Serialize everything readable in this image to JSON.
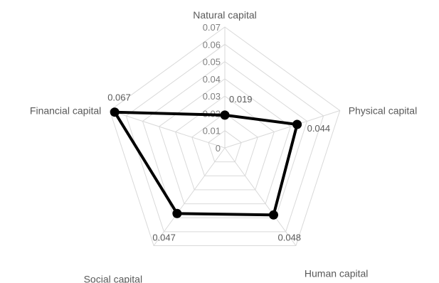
{
  "chart_data": {
    "type": "radar",
    "categories": [
      "Natural capital",
      "Physical capital",
      "Human capital",
      "Social capital",
      "Financial capital"
    ],
    "series": [
      {
        "values": [
          0.019,
          0.044,
          0.048,
          0.047,
          0.067
        ]
      }
    ],
    "value_labels": [
      "0.019",
      "0.044",
      "0.048",
      "0.047",
      "0.067"
    ],
    "ticks": [
      "0",
      "0.01",
      "0.02",
      "0.03",
      "0.04",
      "0.05",
      "0.06",
      "0.07"
    ],
    "r_range": [
      0,
      0.07
    ],
    "grid": true,
    "legend": "none",
    "colors": {
      "series": "#000000",
      "grid": "#d9d9d9",
      "ticks": "#7f7f7f",
      "labels": "#595959"
    }
  }
}
